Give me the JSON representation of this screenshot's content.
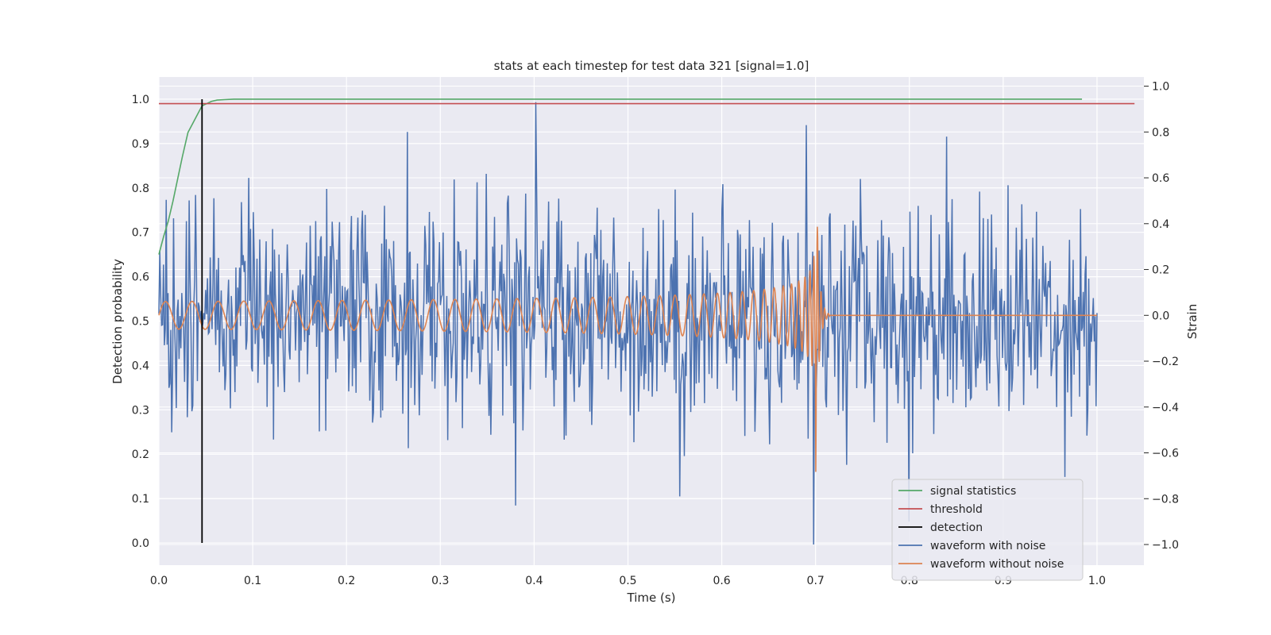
{
  "chart_data": {
    "type": "line",
    "title": "stats at each timestep for test data 321 [signal=1.0]",
    "xlabel": "Time (s)",
    "ylabel": "Detection probability",
    "ylabel_right": "Strain",
    "xlim": [
      0.0,
      1.05
    ],
    "ylim": [
      -0.05,
      1.05
    ],
    "ylim_right": [
      -1.09,
      1.04
    ],
    "x_ticks": [
      "0.0",
      "0.1",
      "0.2",
      "0.3",
      "0.4",
      "0.5",
      "0.6",
      "0.7",
      "0.8",
      "0.9",
      "1.0"
    ],
    "y_ticks": [
      "0.0",
      "0.1",
      "0.2",
      "0.3",
      "0.4",
      "0.5",
      "0.6",
      "0.7",
      "0.8",
      "0.9",
      "1.0"
    ],
    "y_ticks_right": [
      "−1.0",
      "−0.8",
      "−0.6",
      "−0.4",
      "−0.2",
      "0.0",
      "0.2",
      "0.4",
      "0.6",
      "0.8",
      "1.0"
    ],
    "grid": true,
    "legend_position": "lower-right",
    "colors": {
      "background": "#eaeaf2",
      "grid": "#ffffff",
      "signal_statistics": "#55a868",
      "threshold": "#c44e52",
      "detection": "#000000",
      "waveform_noise": "#4c72b0",
      "waveform_clean": "#dd8452"
    },
    "series": [
      {
        "name": "signal statistics",
        "axis": "left",
        "x": [
          0.0,
          0.005,
          0.01,
          0.015,
          0.02,
          0.025,
          0.031,
          0.036,
          0.041,
          0.046,
          0.051,
          0.056,
          0.062,
          0.07,
          0.08,
          0.1,
          0.2,
          0.4,
          0.6,
          0.8,
          0.984
        ],
        "y": [
          0.65,
          0.69,
          0.725,
          0.77,
          0.82,
          0.87,
          0.925,
          0.945,
          0.965,
          0.985,
          0.99,
          0.995,
          0.998,
          0.999,
          1.0,
          1.0,
          1.0,
          1.0,
          1.0,
          1.0,
          1.0
        ]
      },
      {
        "name": "threshold",
        "axis": "left",
        "x": [
          0.0,
          1.04
        ],
        "y": [
          0.99,
          0.99
        ]
      },
      {
        "name": "detection",
        "axis": "left",
        "x": [
          0.046,
          0.046
        ],
        "y": [
          0.0,
          1.0
        ]
      },
      {
        "name": "waveform with noise",
        "axis": "right",
        "x_range": [
          0.0,
          1.0
        ],
        "approx_std": 0.24,
        "peak_points": [
          {
            "x": 0.265,
            "y": 0.8
          },
          {
            "x": 0.38,
            "y": -0.83
          },
          {
            "x": 0.402,
            "y": 0.93
          },
          {
            "x": 0.555,
            "y": -0.79
          },
          {
            "x": 0.698,
            "y": -1.0
          },
          {
            "x": 0.69,
            "y": 0.83
          },
          {
            "x": 0.8,
            "y": -0.9
          },
          {
            "x": 0.84,
            "y": 0.78
          }
        ]
      },
      {
        "name": "waveform without noise",
        "axis": "right",
        "x_range": [
          0.0,
          1.0
        ],
        "merger_time": 0.7,
        "ringdown_end": 0.715,
        "early_amplitude": 0.06,
        "peak_amplitude": 0.75,
        "early_frequency_hz": 35,
        "late_frequency_hz": 120
      }
    ]
  }
}
